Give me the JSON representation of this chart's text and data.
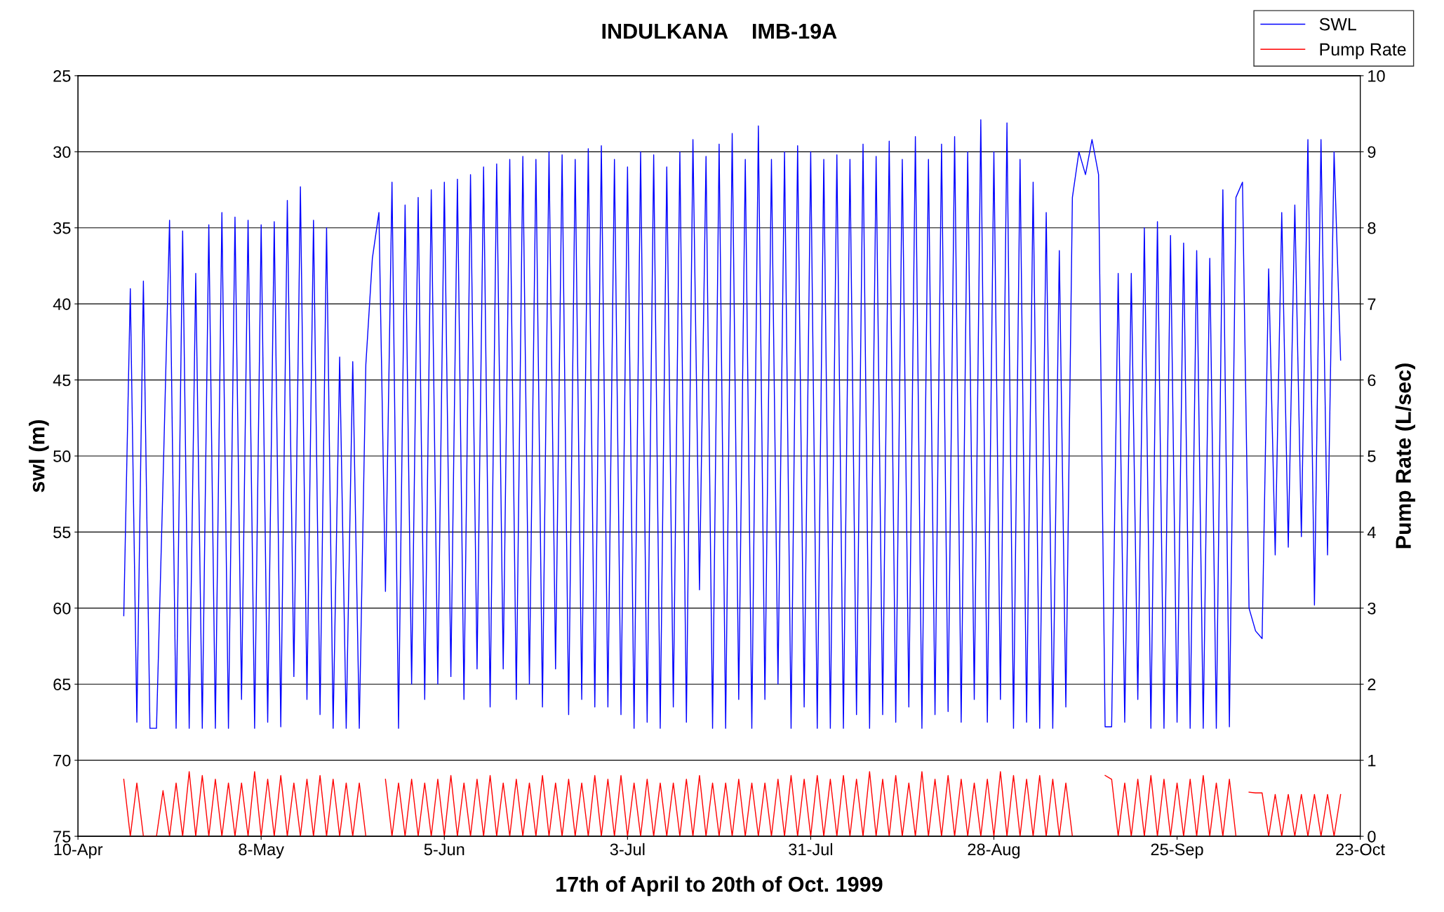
{
  "chart_data": {
    "type": "line",
    "title": "INDULKANA    IMB-19A",
    "xlabel": "17th of April to 20th of Oct. 1999",
    "ylabel": "swl (m)",
    "y2label": "Pump Rate (L/sec)",
    "x": [
      "1999-04-17",
      "1999-04-18",
      "1999-04-19",
      "1999-04-20",
      "1999-04-21",
      "1999-04-22",
      "1999-04-23",
      "1999-04-24",
      "1999-04-25",
      "1999-04-26",
      "1999-04-27",
      "1999-04-28",
      "1999-04-29",
      "1999-04-30",
      "1999-05-01",
      "1999-05-02",
      "1999-05-03",
      "1999-05-04",
      "1999-05-05",
      "1999-05-06",
      "1999-05-07",
      "1999-05-08",
      "1999-05-09",
      "1999-05-10",
      "1999-05-11",
      "1999-05-12",
      "1999-05-13",
      "1999-05-14",
      "1999-05-15",
      "1999-05-16",
      "1999-05-17",
      "1999-05-18",
      "1999-05-19",
      "1999-05-20",
      "1999-05-21",
      "1999-05-22",
      "1999-05-23",
      "1999-05-24",
      "1999-05-25",
      "1999-05-26",
      "1999-05-27",
      "1999-05-28",
      "1999-05-29",
      "1999-05-30",
      "1999-05-31",
      "1999-06-01",
      "1999-06-02",
      "1999-06-03",
      "1999-06-04",
      "1999-06-05",
      "1999-06-06",
      "1999-06-07",
      "1999-06-08",
      "1999-06-09",
      "1999-06-10",
      "1999-06-11",
      "1999-06-12",
      "1999-06-13",
      "1999-06-14",
      "1999-06-15",
      "1999-06-16",
      "1999-06-17",
      "1999-06-18",
      "1999-06-19",
      "1999-06-20",
      "1999-06-21",
      "1999-06-22",
      "1999-06-23",
      "1999-06-24",
      "1999-06-25",
      "1999-06-26",
      "1999-06-27",
      "1999-06-28",
      "1999-06-29",
      "1999-06-30",
      "1999-07-01",
      "1999-07-02",
      "1999-07-03",
      "1999-07-04",
      "1999-07-05",
      "1999-07-06",
      "1999-07-07",
      "1999-07-08",
      "1999-07-09",
      "1999-07-10",
      "1999-07-11",
      "1999-07-12",
      "1999-07-13",
      "1999-07-14",
      "1999-07-15",
      "1999-07-16",
      "1999-07-17",
      "1999-07-18",
      "1999-07-19",
      "1999-07-20",
      "1999-07-21",
      "1999-07-22",
      "1999-07-23",
      "1999-07-24",
      "1999-07-25",
      "1999-07-26",
      "1999-07-27",
      "1999-07-28",
      "1999-07-29",
      "1999-07-30",
      "1999-07-31",
      "1999-08-01",
      "1999-08-02",
      "1999-08-03",
      "1999-08-04",
      "1999-08-05",
      "1999-08-06",
      "1999-08-07",
      "1999-08-08",
      "1999-08-09",
      "1999-08-10",
      "1999-08-11",
      "1999-08-12",
      "1999-08-13",
      "1999-08-14",
      "1999-08-15",
      "1999-08-16",
      "1999-08-17",
      "1999-08-18",
      "1999-08-19",
      "1999-08-20",
      "1999-08-21",
      "1999-08-22",
      "1999-08-23",
      "1999-08-24",
      "1999-08-25",
      "1999-08-26",
      "1999-08-27",
      "1999-08-28",
      "1999-08-29",
      "1999-08-30",
      "1999-08-31",
      "1999-09-01",
      "1999-09-02",
      "1999-09-03",
      "1999-09-04",
      "1999-09-05",
      "1999-09-06",
      "1999-09-07",
      "1999-09-08",
      "1999-09-09",
      "1999-09-10",
      "1999-09-11",
      "1999-09-12",
      "1999-09-13",
      "1999-09-14",
      "1999-09-15",
      "1999-09-16",
      "1999-09-17",
      "1999-09-18",
      "1999-09-19",
      "1999-09-20",
      "1999-09-21",
      "1999-09-22",
      "1999-09-23",
      "1999-09-24",
      "1999-09-25",
      "1999-09-26",
      "1999-09-27",
      "1999-09-28",
      "1999-09-29",
      "1999-09-30",
      "1999-10-01",
      "1999-10-02",
      "1999-10-03",
      "1999-10-04",
      "1999-10-05",
      "1999-10-06",
      "1999-10-07",
      "1999-10-08",
      "1999-10-09",
      "1999-10-10",
      "1999-10-11",
      "1999-10-12",
      "1999-10-13",
      "1999-10-14",
      "1999-10-15",
      "1999-10-16",
      "1999-10-17",
      "1999-10-18",
      "1999-10-19",
      "1999-10-20"
    ],
    "series": [
      {
        "name": "SWL",
        "color": "#0000ff",
        "values": [
          60.5,
          39,
          67.5,
          38.5,
          67.9,
          67.9,
          51.7,
          34.5,
          67.9,
          35.2,
          67.9,
          38,
          67.9,
          34.8,
          67.9,
          34,
          67.9,
          34.3,
          66,
          34.5,
          67.9,
          34.8,
          67.5,
          34.6,
          67.8,
          33.2,
          64.5,
          32.3,
          66,
          34.5,
          67,
          35,
          67.9,
          43.5,
          67.9,
          43.8,
          67.9,
          44,
          37,
          34,
          58.9,
          32,
          67.9,
          33.5,
          65,
          33,
          66,
          32.5,
          65,
          32,
          64.5,
          31.8,
          66,
          31.5,
          64,
          31,
          66.5,
          30.8,
          64,
          30.5,
          66,
          30.3,
          65,
          30.5,
          66.5,
          30,
          64,
          30.2,
          67,
          30.5,
          66,
          29.8,
          66.5,
          29.6,
          66.5,
          30.5,
          67,
          31,
          67.9,
          30,
          67.5,
          30.2,
          67.9,
          31,
          66.5,
          30,
          67.5,
          29.2,
          58.8,
          30.3,
          67.9,
          29.5,
          67.9,
          28.8,
          66,
          30.5,
          67.9,
          28.3,
          66,
          30.5,
          65,
          30,
          67.9,
          29.6,
          66.5,
          30,
          67.9,
          30.5,
          67.9,
          30.2,
          67.9,
          30.5,
          67,
          29.5,
          67.9,
          30.3,
          67,
          29.3,
          67.5,
          30.5,
          66.5,
          29,
          67.9,
          30.5,
          67,
          29.5,
          66.8,
          29,
          67.5,
          30,
          66,
          27.9,
          67.5,
          30,
          66,
          28.1,
          67.9,
          30.5,
          67.5,
          32,
          67.9,
          34,
          67.9,
          36.5,
          66.5,
          33,
          30,
          31.5,
          29.2,
          31.5,
          67.8,
          67.8,
          38,
          67.5,
          38,
          66,
          35,
          67.9,
          34.6,
          67.9,
          35.5,
          67.5,
          36,
          67.9,
          36.5,
          67.9,
          37,
          67.9,
          32.5,
          67.8,
          33,
          32,
          60,
          61.5,
          62,
          37.7,
          56.5,
          34,
          56,
          33.5,
          55.3,
          29.2,
          59.8,
          29.2,
          56.5,
          30,
          43.7
        ]
      },
      {
        "name": "Pump Rate",
        "color": "#ff0000",
        "axis": "y2",
        "values": [
          0.75,
          0,
          0.7,
          0,
          0,
          0,
          0.6,
          0,
          0.7,
          0,
          0.85,
          0,
          0.8,
          0,
          0.75,
          0,
          0.7,
          0,
          0.7,
          0,
          0.85,
          0,
          0.75,
          0,
          0.8,
          0,
          0.7,
          0,
          0.75,
          0,
          0.8,
          0,
          0.75,
          0,
          0.7,
          0,
          0.7,
          0,
          null,
          null,
          0.75,
          0,
          0.7,
          0,
          0.75,
          0,
          0.7,
          0,
          0.75,
          0,
          0.8,
          0,
          0.7,
          0,
          0.75,
          0,
          0.8,
          0,
          0.7,
          0,
          0.75,
          0,
          0.7,
          0,
          0.8,
          0,
          0.7,
          0,
          0.75,
          0,
          0.7,
          0,
          0.8,
          0,
          0.75,
          0,
          0.8,
          0,
          0.7,
          0,
          0.75,
          0,
          0.7,
          0,
          0.7,
          0,
          0.75,
          0,
          0.8,
          0,
          0.7,
          0,
          0.7,
          0,
          0.75,
          0,
          0.7,
          0,
          0.7,
          0,
          0.75,
          0,
          0.8,
          0,
          0.75,
          0,
          0.8,
          0,
          0.75,
          0,
          0.8,
          0,
          0.75,
          0,
          0.85,
          0,
          0.75,
          0,
          0.8,
          0,
          0.7,
          0,
          0.85,
          0,
          0.75,
          0,
          0.8,
          0,
          0.75,
          0,
          0.7,
          0,
          0.75,
          0,
          0.85,
          0,
          0.8,
          0,
          0.75,
          0,
          0.8,
          0,
          0.75,
          0,
          0.7,
          0,
          null,
          null,
          null,
          null,
          0.8,
          0.75,
          0,
          0.7,
          0,
          0.75,
          0,
          0.8,
          0,
          0.75,
          0,
          0.7,
          0,
          0.75,
          0,
          0.8,
          0,
          0.7,
          0,
          0.75,
          0,
          null,
          0.58,
          0.57,
          0.57,
          0,
          0.55,
          0,
          0.55,
          0,
          0.55,
          0,
          0.55,
          0,
          0.55,
          0,
          0.55
        ]
      }
    ],
    "xlim": [
      "1999-04-10",
      "1999-10-23"
    ],
    "xticks": [
      {
        "value": "1999-04-10",
        "label": "10-Apr"
      },
      {
        "value": "1999-05-08",
        "label": "8-May"
      },
      {
        "value": "1999-06-05",
        "label": "5-Jun"
      },
      {
        "value": "1999-07-03",
        "label": "3-Jul"
      },
      {
        "value": "1999-07-31",
        "label": "31-Jul"
      },
      {
        "value": "1999-08-28",
        "label": "28-Aug"
      },
      {
        "value": "1999-09-25",
        "label": "25-Sep"
      },
      {
        "value": "1999-10-23",
        "label": "23-Oct"
      }
    ],
    "ylim": [
      75,
      25
    ],
    "yticks": [
      25,
      30,
      35,
      40,
      45,
      50,
      55,
      60,
      65,
      70,
      75
    ],
    "y2lim": [
      0,
      10
    ],
    "y2ticks": [
      0,
      1,
      2,
      3,
      4,
      5,
      6,
      7,
      8,
      9,
      10
    ],
    "grid": "y",
    "legend": "top right",
    "marker": "none",
    "line_style": "solid"
  }
}
